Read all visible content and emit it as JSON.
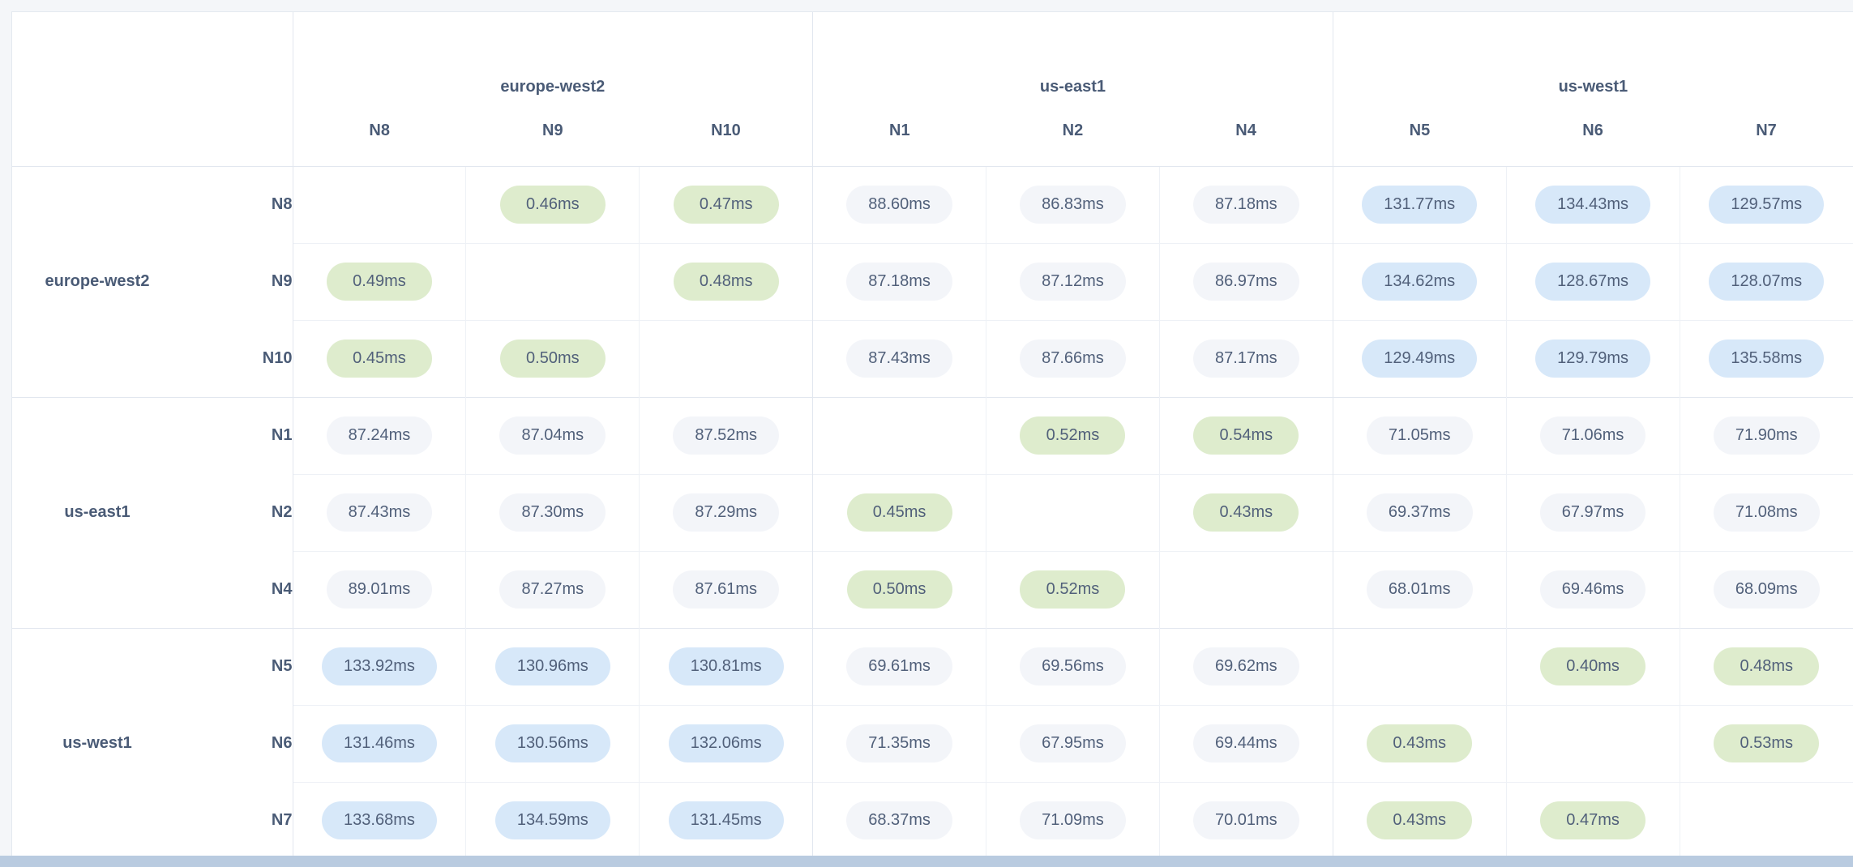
{
  "colors": {
    "low_latency_pill": "#deeccd",
    "mid_latency_pill": "#f3f5f9",
    "high_latency_pill": "#d7e8f9",
    "header_text": "#4a5b76",
    "pill_text": "#51607a",
    "bottom_strip": "#b9cbe0"
  },
  "latency_unit": "ms",
  "column_groups": [
    {
      "region": "europe-west2",
      "nodes": [
        "N8",
        "N9",
        "N10"
      ]
    },
    {
      "region": "us-east1",
      "nodes": [
        "N1",
        "N2",
        "N4"
      ]
    },
    {
      "region": "us-west1",
      "nodes": [
        "N5",
        "N6",
        "N7"
      ]
    }
  ],
  "row_groups": [
    {
      "region": "europe-west2",
      "rows": [
        {
          "node": "N8",
          "cells": [
            "",
            "0.46ms",
            "0.47ms",
            "88.60ms",
            "86.83ms",
            "87.18ms",
            "131.77ms",
            "134.43ms",
            "129.57ms"
          ]
        },
        {
          "node": "N9",
          "cells": [
            "0.49ms",
            "",
            "0.48ms",
            "87.18ms",
            "87.12ms",
            "86.97ms",
            "134.62ms",
            "128.67ms",
            "128.07ms"
          ]
        },
        {
          "node": "N10",
          "cells": [
            "0.45ms",
            "0.50ms",
            "",
            "87.43ms",
            "87.66ms",
            "87.17ms",
            "129.49ms",
            "129.79ms",
            "135.58ms"
          ]
        }
      ]
    },
    {
      "region": "us-east1",
      "rows": [
        {
          "node": "N1",
          "cells": [
            "87.24ms",
            "87.04ms",
            "87.52ms",
            "",
            "0.52ms",
            "0.54ms",
            "71.05ms",
            "71.06ms",
            "71.90ms"
          ]
        },
        {
          "node": "N2",
          "cells": [
            "87.43ms",
            "87.30ms",
            "87.29ms",
            "0.45ms",
            "",
            "0.43ms",
            "69.37ms",
            "67.97ms",
            "71.08ms"
          ]
        },
        {
          "node": "N4",
          "cells": [
            "89.01ms",
            "87.27ms",
            "87.61ms",
            "0.50ms",
            "0.52ms",
            "",
            "68.01ms",
            "69.46ms",
            "68.09ms"
          ]
        }
      ]
    },
    {
      "region": "us-west1",
      "rows": [
        {
          "node": "N5",
          "cells": [
            "133.92ms",
            "130.96ms",
            "130.81ms",
            "69.61ms",
            "69.56ms",
            "69.62ms",
            "",
            "0.40ms",
            "0.48ms"
          ]
        },
        {
          "node": "N6",
          "cells": [
            "131.46ms",
            "130.56ms",
            "132.06ms",
            "71.35ms",
            "67.95ms",
            "69.44ms",
            "0.43ms",
            "",
            "0.53ms"
          ]
        },
        {
          "node": "N7",
          "cells": [
            "133.68ms",
            "134.59ms",
            "131.45ms",
            "68.37ms",
            "71.09ms",
            "70.01ms",
            "0.43ms",
            "0.47ms",
            ""
          ]
        }
      ]
    }
  ]
}
